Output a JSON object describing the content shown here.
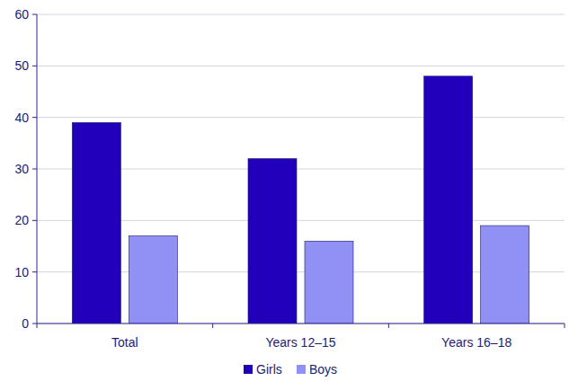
{
  "chart_data": {
    "type": "bar",
    "categories": [
      "Total",
      "Years 12–15",
      "Years 16–18"
    ],
    "series": [
      {
        "name": "Girls",
        "color": "#2200bb",
        "values": [
          39,
          32,
          48
        ]
      },
      {
        "name": "Boys",
        "color": "#9090f5",
        "values": [
          17,
          16,
          19
        ]
      }
    ],
    "ylim": [
      0,
      60
    ],
    "yticks": [
      0,
      10,
      20,
      30,
      40,
      50,
      60
    ],
    "grid": true,
    "legend": "bottom"
  }
}
